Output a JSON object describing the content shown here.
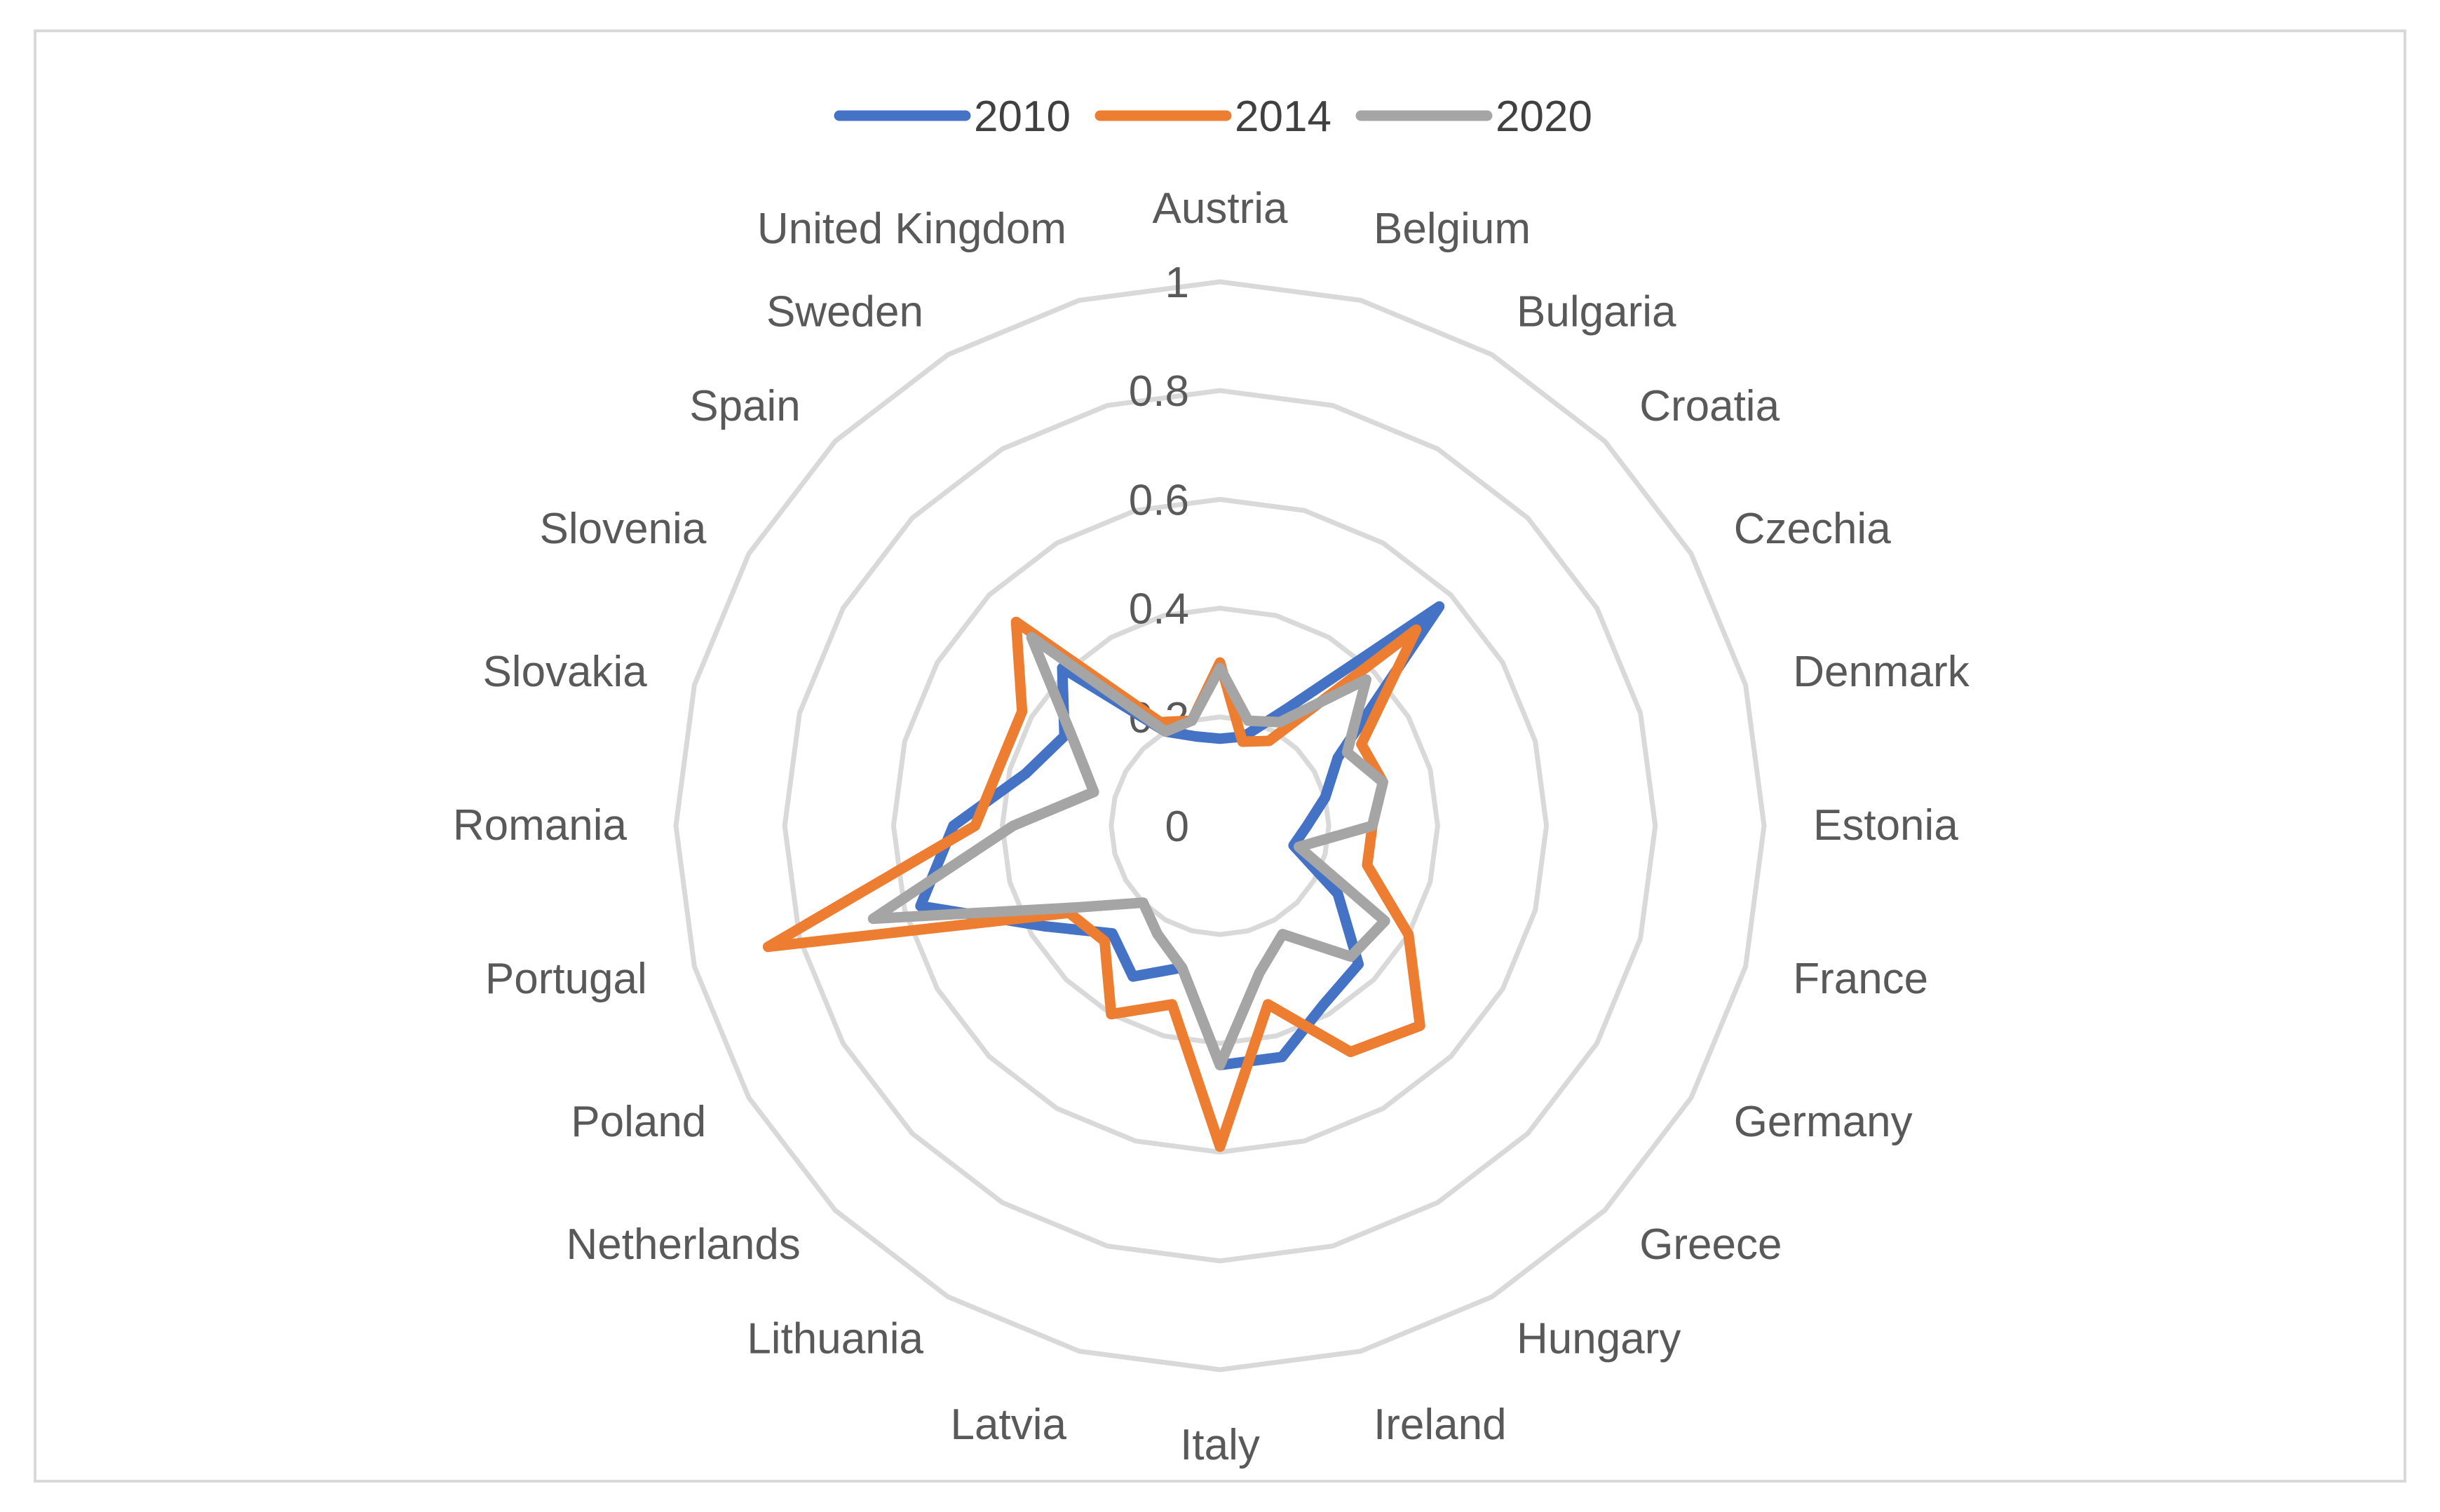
{
  "chart_data": {
    "type": "radar",
    "title": "",
    "categories": [
      "Austria",
      "Belgium",
      "Bulgaria",
      "Croatia",
      "Czechia",
      "Denmark",
      "Estonia",
      "France",
      "Germany",
      "Greece",
      "Hungary",
      "Ireland",
      "Italy",
      "Latvia",
      "Lithuania",
      "Netherlands",
      "Poland",
      "Portugal",
      "Romania",
      "Slovakia",
      "Slovenia",
      "Spain",
      "Sweden",
      "United Kingdom"
    ],
    "tick_labels": [
      "0",
      "0.2",
      "0.4",
      "0.6",
      "0.8",
      "1"
    ],
    "rmax": 1,
    "rings": 5,
    "grid": true,
    "legend_position": "top",
    "series": [
      {
        "name": "2010",
        "color": "#4472C4",
        "values": [
          0.16,
          0.17,
          0.25,
          0.57,
          0.25,
          0.2,
          0.16,
          0.14,
          0.25,
          0.36,
          0.38,
          0.44,
          0.44,
          0.27,
          0.32,
          0.28,
          0.37,
          0.57,
          0.49,
          0.37,
          0.33,
          0.41,
          0.2,
          0.17
        ]
      },
      {
        "name": "2014",
        "color": "#ED7D31",
        "values": [
          0.3,
          0.16,
          0.18,
          0.51,
          0.3,
          0.31,
          0.28,
          0.28,
          0.4,
          0.52,
          0.48,
          0.34,
          0.59,
          0.34,
          0.4,
          0.3,
          0.32,
          0.86,
          0.45,
          0.42,
          0.42,
          0.53,
          0.22,
          0.2
        ]
      },
      {
        "name": "2020",
        "color": "#A5A5A5",
        "values": [
          0.29,
          0.2,
          0.22,
          0.38,
          0.27,
          0.31,
          0.28,
          0.15,
          0.35,
          0.34,
          0.23,
          0.28,
          0.44,
          0.27,
          0.23,
          0.2,
          0.3,
          0.66,
          0.38,
          0.24,
          0.31,
          0.49,
          0.2,
          0.2
        ]
      }
    ]
  },
  "legend": {
    "labels": [
      "2010",
      "2014",
      "2020"
    ]
  }
}
